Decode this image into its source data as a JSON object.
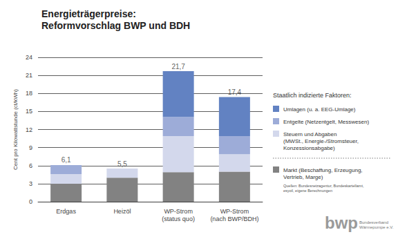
{
  "chart_data": {
    "type": "bar",
    "stacked": true,
    "title": "Energieträgerpreise:\nReformvorschlag BWP und BDH",
    "y_label": "Cent pro Kilowattstunde (ct/kWh)",
    "categories": [
      "Erdgas",
      "Heizöl",
      "WP-Strom\n(status quo)",
      "WP-Strom\n(nach BWP/BDH)"
    ],
    "series": [
      {
        "name": "Markt (Beschaffung, Erzeugung,\nVertrieb, Marge)",
        "color": "#828282",
        "values": [
          3.0,
          4.0,
          4.9,
          5.0
        ]
      },
      {
        "name": "Steuern und Abgaben\n(MWSt., Energie-/Stromsteuer,\nKonzessionsabgabe)",
        "color": "#d3d8ec",
        "values": [
          1.6,
          1.5,
          6.0,
          2.9
        ]
      },
      {
        "name": "Entgelte (Netzentgelt, Messwesen)",
        "color": "#9dacd8",
        "values": [
          1.5,
          0,
          3.2,
          3.0
        ]
      },
      {
        "name": "Umlagen (u. a. EEG-Umlage)",
        "color": "#6282c2",
        "values": [
          0,
          0,
          7.6,
          6.5
        ]
      }
    ],
    "totals": {
      "values": [
        6.1,
        5.5,
        21.7,
        17.4
      ],
      "value_labels": [
        "6,1",
        "5,5",
        "21,7",
        "17,4"
      ]
    },
    "ylim": [
      0,
      24
    ],
    "yticks": [
      0,
      3,
      6,
      9,
      12,
      15,
      18,
      21,
      24
    ],
    "grid": true,
    "legend": "right",
    "legend_title": "Staatlich indizierte Faktoren:",
    "source": "Quellen: Bundesnetzagentur, Bundeskartellamt,\nesyoil, eigene Berechnungen",
    "logo": {
      "text": "bwp",
      "subtitle": "Bundesverband\nWärmepumpe e.V."
    }
  }
}
